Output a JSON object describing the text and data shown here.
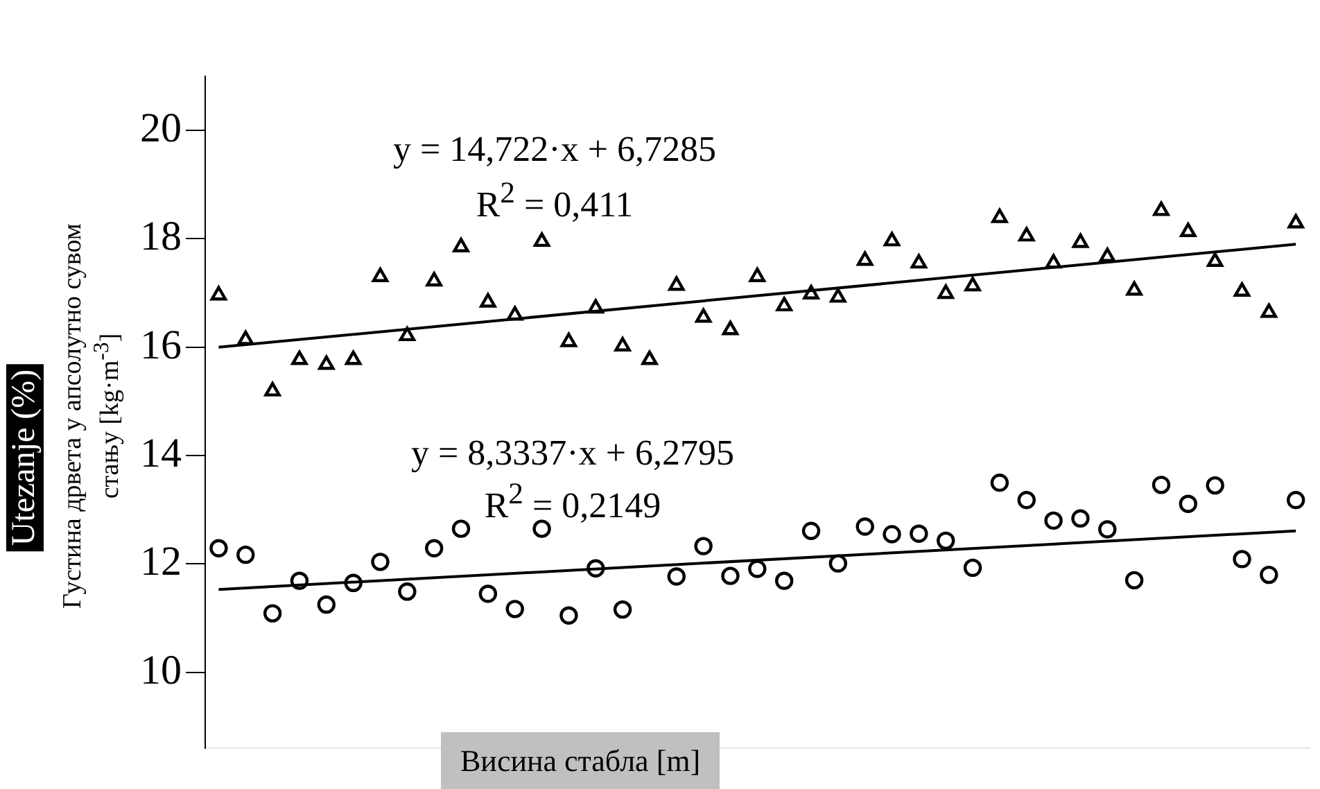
{
  "chart_data": {
    "type": "scatter",
    "ylabel": "Utezanje (%)",
    "xlabel": "Висина стабла [m]",
    "annotations": [
      "Густина дрвета у апсолутно сувом стању [kg·m$^{-3}$]",
      "y = 14,722·x + 6,7285",
      "R$^{2}$ = 0,411",
      "y = 8,3337·x + 6,2795",
      "R$^{2}$ = 0,2149"
    ],
    "categories": [
      null,
      null,
      null,
      null,
      null,
      null,
      null,
      null,
      null,
      null,
      null,
      null,
      null,
      null,
      null,
      null,
      null,
      null,
      null,
      null,
      null,
      null,
      null,
      null,
      null,
      null,
      null,
      null,
      null,
      null,
      null,
      null,
      null,
      null,
      null,
      null,
      null,
      null,
      null,
      null,
      null
    ],
    "ylim": [
      8.6,
      21
    ],
    "yticks": [
      10,
      12,
      14,
      16,
      18,
      20
    ],
    "grid": false,
    "legend": false,
    "series": [
      {
        "marker": "triangle",
        "color": "#000000",
        "values": [
          16.96,
          16.14,
          15.19,
          15.77,
          15.68,
          15.77,
          17.3,
          16.21,
          17.22,
          17.85,
          16.83,
          16.59,
          17.95,
          16.1,
          16.72,
          16.02,
          15.77,
          17.14,
          16.55,
          16.32,
          17.3,
          16.76,
          16.98,
          16.92,
          17.6,
          17.96,
          17.55,
          16.99,
          17.13,
          18.39,
          18.05,
          17.55,
          17.93,
          17.67,
          17.05,
          18.52,
          18.13,
          17.58,
          17.03,
          16.64,
          18.29
        ]
      },
      {
        "marker": "circle",
        "color": "#000000",
        "values": [
          12.29,
          12.17,
          11.09,
          11.69,
          11.25,
          11.65,
          12.04,
          11.49,
          12.29,
          12.65,
          11.45,
          11.17,
          12.65,
          11.05,
          11.92,
          11.16,
          null,
          11.77,
          12.33,
          11.78,
          11.91,
          11.69,
          12.61,
          12.01,
          12.69,
          12.55,
          12.56,
          12.43,
          11.93,
          13.5,
          13.18,
          12.8,
          12.84,
          12.64,
          11.7,
          13.46,
          13.11,
          13.45,
          12.09,
          11.8,
          13.18
        ]
      },
      {
        "type": "line",
        "marker": "none",
        "line_style": "solid",
        "color": "#000000",
        "values": [
          16.0,
          null,
          null,
          null,
          null,
          null,
          null,
          null,
          null,
          null,
          null,
          null,
          null,
          null,
          null,
          null,
          null,
          null,
          null,
          null,
          null,
          null,
          null,
          null,
          null,
          null,
          null,
          null,
          null,
          null,
          null,
          null,
          null,
          null,
          null,
          null,
          null,
          null,
          null,
          null,
          17.9
        ]
      },
      {
        "type": "line",
        "marker": "none",
        "line_style": "solid",
        "color": "#000000",
        "values": [
          11.53,
          null,
          null,
          null,
          null,
          null,
          null,
          null,
          null,
          null,
          null,
          null,
          null,
          null,
          null,
          null,
          null,
          null,
          null,
          null,
          null,
          null,
          null,
          null,
          null,
          null,
          null,
          null,
          null,
          null,
          null,
          null,
          null,
          null,
          null,
          null,
          null,
          null,
          null,
          null,
          12.61
        ]
      }
    ]
  }
}
